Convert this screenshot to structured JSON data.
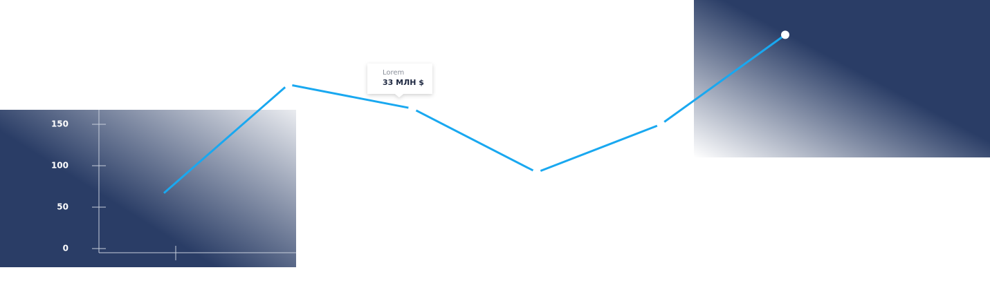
{
  "chart_data": {
    "type": "line",
    "categories": [
      null,
      null,
      null,
      null,
      null,
      null
    ],
    "series": [
      {
        "color": "#19a8f0",
        "values": [
          67,
          198,
          169,
          92,
          150,
          258
        ]
      }
    ],
    "ylim": [
      0,
      150
    ],
    "yticks": [
      0,
      50,
      100,
      150
    ],
    "tooltip": {
      "label": "Lorem",
      "value": "33 МЛН $"
    }
  }
}
